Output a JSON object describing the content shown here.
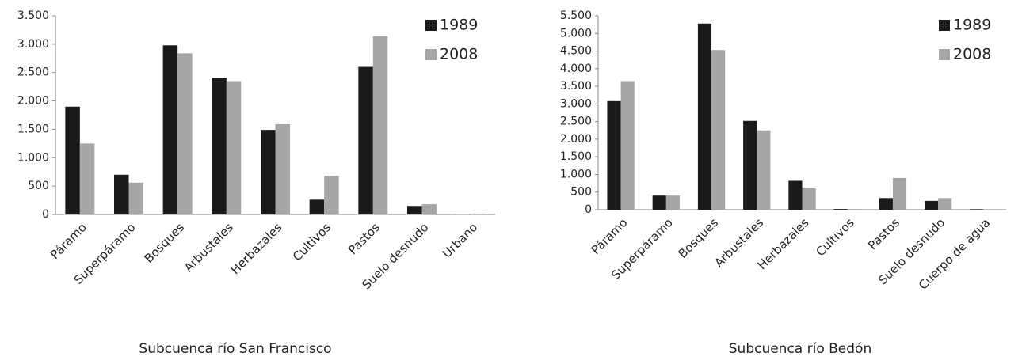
{
  "chart_data": [
    {
      "type": "bar",
      "title": "Subcuenca río San Francisco",
      "categories": [
        "Páramo",
        "Superpáramo",
        "Bosques",
        "Arbustales",
        "Herbazales",
        "Cultivos",
        "Pastos",
        "Suelo desnudo",
        "Urbano"
      ],
      "series": [
        {
          "name": "1989",
          "color": "#1a1a1a",
          "values": [
            1900,
            700,
            2980,
            2410,
            1490,
            260,
            2600,
            150,
            10
          ]
        },
        {
          "name": "2008",
          "color": "#a6a6a6",
          "values": [
            1250,
            560,
            2840,
            2350,
            1590,
            680,
            3140,
            180,
            15
          ]
        }
      ],
      "ylim": [
        0,
        3500
      ],
      "yticks": [
        0,
        500,
        {
          "value": 1000,
          "label": "1.000"
        },
        {
          "value": 1500,
          "label": "1.500"
        },
        {
          "value": 2000,
          "label": "2.000"
        },
        {
          "value": 2500,
          "label": "2.500"
        },
        {
          "value": 3000,
          "label": "3.000"
        },
        {
          "value": 3500,
          "label": "3.500"
        }
      ],
      "grid": false,
      "legend": "upper right"
    },
    {
      "type": "bar",
      "title": "Subcuenca río Bedón",
      "categories": [
        "Páramo",
        "Superpáramo",
        "Bosques",
        "Arbustales",
        "Herbazales",
        "Cultivos",
        "Pastos",
        "Suelo desnudo",
        "Cuerpo de agua"
      ],
      "series": [
        {
          "name": "1989",
          "color": "#1a1a1a",
          "values": [
            3080,
            400,
            5280,
            2520,
            820,
            20,
            330,
            250,
            15
          ]
        },
        {
          "name": "2008",
          "color": "#a6a6a6",
          "values": [
            3650,
            400,
            4530,
            2250,
            630,
            20,
            900,
            330,
            15
          ]
        }
      ],
      "ylim": [
        0,
        5500
      ],
      "yticks": [
        0,
        500,
        {
          "value": 1000,
          "label": "1.000"
        },
        {
          "value": 1500,
          "label": "1.500"
        },
        {
          "value": 2000,
          "label": "2.000"
        },
        {
          "value": 2500,
          "label": "2.500"
        },
        {
          "value": 3000,
          "label": "3.000"
        },
        {
          "value": 3500,
          "label": "3.500"
        },
        {
          "value": 4000,
          "label": "4.000"
        },
        {
          "value": 4500,
          "label": "4.500"
        },
        {
          "value": 5000,
          "label": "5.000"
        },
        {
          "value": 5500,
          "label": "5.500"
        }
      ],
      "grid": false,
      "legend": "upper right"
    }
  ]
}
